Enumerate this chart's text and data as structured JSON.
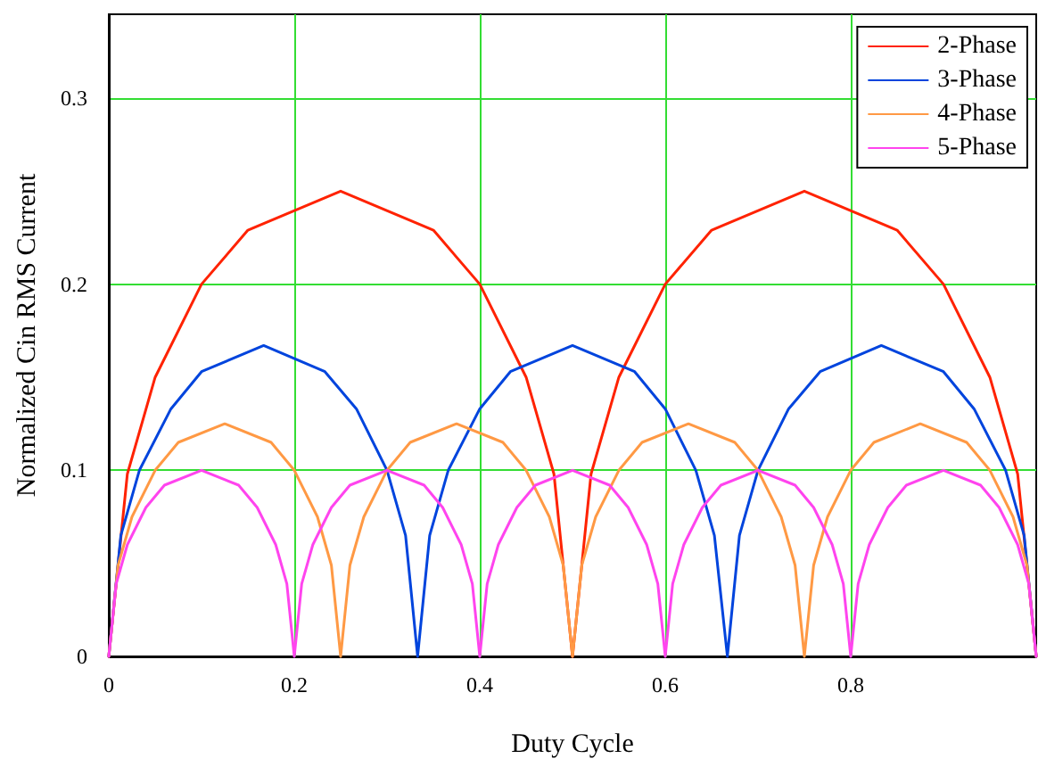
{
  "chart_data": {
    "type": "line",
    "xlabel": "Duty Cycle",
    "ylabel": "Normalized Cin RMS Current",
    "xlim": [
      0,
      1
    ],
    "xticks": [
      0,
      0.2,
      0.4,
      0.6,
      0.8
    ],
    "ylim": [
      0,
      0.345
    ],
    "yticks": [
      0,
      0.1,
      0.2,
      0.3
    ],
    "grid": true,
    "legend": "top right",
    "marker": "none",
    "line_style": "solid",
    "series": [
      {
        "name": "2-Phase",
        "color": "#ff2200",
        "x": [
          0,
          0.02,
          0.05,
          0.1,
          0.15,
          0.25,
          0.35,
          0.4,
          0.45,
          0.48,
          0.5,
          0.52,
          0.55,
          0.6,
          0.65,
          0.75,
          0.85,
          0.9,
          0.95,
          0.98,
          1
        ],
        "values": [
          0,
          0.098,
          0.15,
          0.2,
          0.229,
          0.25,
          0.229,
          0.2,
          0.15,
          0.098,
          0,
          0.098,
          0.15,
          0.2,
          0.229,
          0.25,
          0.229,
          0.2,
          0.15,
          0.098,
          0
        ]
      },
      {
        "name": "3-Phase",
        "color": "#0044dd",
        "x": [
          0,
          0.013,
          0.033,
          0.067,
          0.1,
          0.167,
          0.233,
          0.267,
          0.3,
          0.32,
          0.333,
          0.346,
          0.366,
          0.4,
          0.433,
          0.5,
          0.567,
          0.6,
          0.633,
          0.653,
          0.667,
          0.68,
          0.7,
          0.733,
          0.767,
          0.833,
          0.9,
          0.933,
          0.967,
          0.987,
          1
        ],
        "values": [
          0,
          0.065,
          0.1,
          0.133,
          0.153,
          0.167,
          0.153,
          0.133,
          0.1,
          0.065,
          0,
          0.065,
          0.1,
          0.133,
          0.153,
          0.167,
          0.153,
          0.133,
          0.1,
          0.065,
          0,
          0.065,
          0.1,
          0.133,
          0.153,
          0.167,
          0.153,
          0.133,
          0.1,
          0.065,
          0
        ]
      },
      {
        "name": "4-Phase",
        "color": "#ff9944",
        "x": [
          0,
          0.01,
          0.025,
          0.05,
          0.075,
          0.125,
          0.175,
          0.2,
          0.225,
          0.24,
          0.25,
          0.26,
          0.275,
          0.3,
          0.325,
          0.375,
          0.425,
          0.45,
          0.475,
          0.49,
          0.5,
          0.51,
          0.525,
          0.55,
          0.575,
          0.625,
          0.675,
          0.7,
          0.725,
          0.74,
          0.75,
          0.76,
          0.775,
          0.8,
          0.825,
          0.875,
          0.925,
          0.95,
          0.975,
          0.99,
          1
        ],
        "values": [
          0,
          0.049,
          0.075,
          0.1,
          0.115,
          0.125,
          0.115,
          0.1,
          0.075,
          0.049,
          0,
          0.049,
          0.075,
          0.1,
          0.115,
          0.125,
          0.115,
          0.1,
          0.075,
          0.049,
          0,
          0.049,
          0.075,
          0.1,
          0.115,
          0.125,
          0.115,
          0.1,
          0.075,
          0.049,
          0,
          0.049,
          0.075,
          0.1,
          0.115,
          0.125,
          0.115,
          0.1,
          0.075,
          0.049,
          0
        ]
      },
      {
        "name": "5-Phase",
        "color": "#ff44ee",
        "x": [
          0,
          0.008,
          0.02,
          0.04,
          0.06,
          0.1,
          0.14,
          0.16,
          0.18,
          0.192,
          0.2,
          0.208,
          0.22,
          0.24,
          0.26,
          0.3,
          0.34,
          0.36,
          0.38,
          0.392,
          0.4,
          0.408,
          0.42,
          0.44,
          0.46,
          0.5,
          0.54,
          0.56,
          0.58,
          0.592,
          0.6,
          0.608,
          0.62,
          0.64,
          0.66,
          0.7,
          0.74,
          0.76,
          0.78,
          0.792,
          0.8,
          0.808,
          0.82,
          0.84,
          0.86,
          0.9,
          0.94,
          0.96,
          0.98,
          0.992,
          1
        ],
        "values": [
          0,
          0.039,
          0.06,
          0.08,
          0.092,
          0.1,
          0.092,
          0.08,
          0.06,
          0.039,
          0,
          0.039,
          0.06,
          0.08,
          0.092,
          0.1,
          0.092,
          0.08,
          0.06,
          0.039,
          0,
          0.039,
          0.06,
          0.08,
          0.092,
          0.1,
          0.092,
          0.08,
          0.06,
          0.039,
          0,
          0.039,
          0.06,
          0.08,
          0.092,
          0.1,
          0.092,
          0.08,
          0.06,
          0.039,
          0,
          0.039,
          0.06,
          0.08,
          0.092,
          0.1,
          0.092,
          0.08,
          0.06,
          0.039,
          0
        ]
      }
    ]
  }
}
